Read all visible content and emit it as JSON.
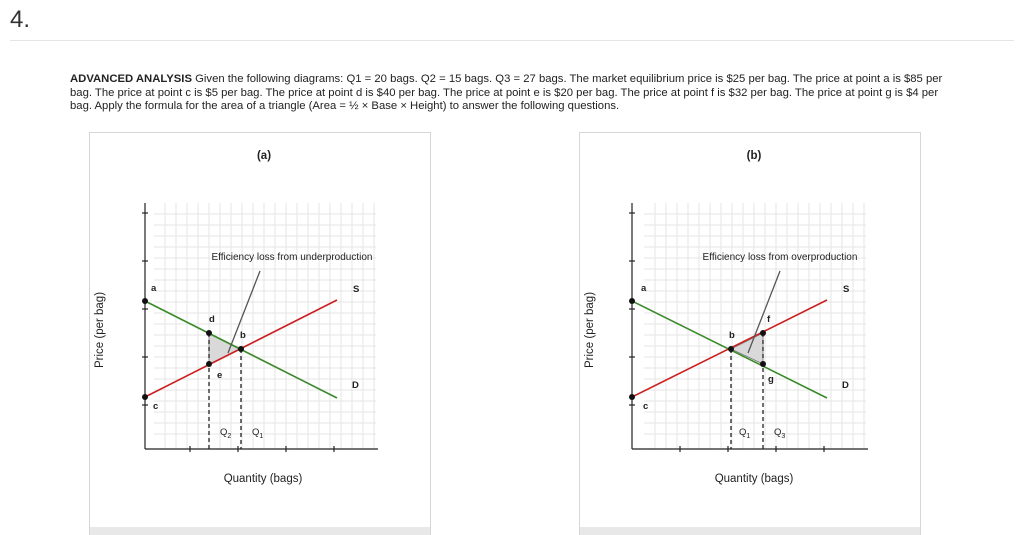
{
  "question": {
    "number": "4.",
    "heading": "ADVANCED ANALYSIS",
    "text_line1": "Given the following diagrams: Q1 = 20 bags. Q2 = 15 bags. Q3 = 27 bags. The market equilibrium price is $25 per bag. The price at point a is $85 per",
    "text_line2": "bag. The price at point c is $5 per bag. The price at point d is $40 per bag. The price at point e is $20 per bag. The price at point f is $32 per bag. The price at point g is $4 per",
    "text_line3": "bag. Apply the formula for the area of a triangle (Area = ½ × Base × Height) to answer the following questions."
  },
  "diagram_a": {
    "title": "(a)",
    "annotation": "Efficiency loss from underproduction",
    "ylabel": "Price (per bag)",
    "xlabel": "Quantity (bags)",
    "labels": {
      "a": "a",
      "b": "b",
      "c": "c",
      "d": "d",
      "e": "e",
      "S": "S",
      "D": "D"
    },
    "q_left": "Q",
    "q_left_sub": "2",
    "q_right": "Q",
    "q_right_sub": "1"
  },
  "diagram_b": {
    "title": "(b)",
    "annotation": "Efficiency loss from overproduction",
    "ylabel": "Price (per bag)",
    "xlabel": "Quantity (bags)",
    "labels": {
      "a": "a",
      "b": "b",
      "c": "c",
      "f": "f",
      "g": "g",
      "S": "S",
      "D": "D"
    },
    "q_left": "Q",
    "q_left_sub": "1",
    "q_right": "Q",
    "q_right_sub": "3"
  },
  "colors": {
    "supply": "#cc1f1f",
    "demand": "#3a8a2a",
    "grid": "#e6e6e6",
    "triangle": "#d9d9d9",
    "annotation_line": "#555555"
  }
}
